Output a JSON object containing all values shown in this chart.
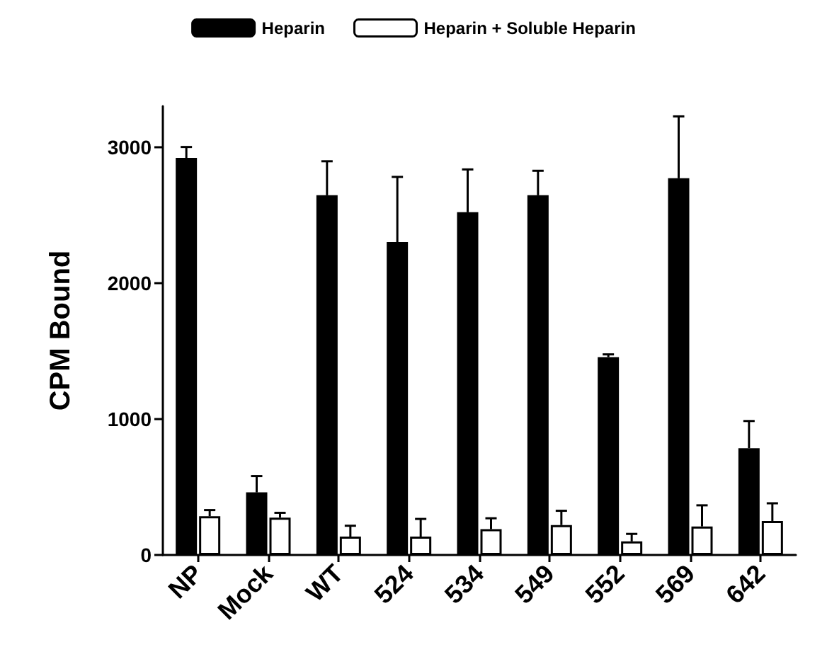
{
  "chart_data": {
    "type": "bar",
    "ylabel": "CPM Bound",
    "categories": [
      "NP",
      "Mock",
      "WT",
      "524",
      "534",
      "549",
      "552",
      "569",
      "642"
    ],
    "series": [
      {
        "name": "Heparin",
        "color": "#000000",
        "values": [
          2920,
          460,
          2645,
          2300,
          2520,
          2645,
          1455,
          2770,
          785
        ],
        "errors": [
          [
            2920,
            3000
          ],
          [
            460,
            580
          ],
          [
            2645,
            2895
          ],
          [
            2300,
            2780
          ],
          [
            2520,
            2835
          ],
          [
            2645,
            2825
          ],
          [
            1455,
            1475
          ],
          [
            2770,
            3225
          ],
          [
            785,
            985
          ]
        ]
      },
      {
        "name": "Heparin + Soluble Heparin",
        "color": "#ffffff",
        "values": [
          285,
          275,
          135,
          135,
          190,
          220,
          100,
          210,
          250
        ],
        "errors": [
          [
            285,
            330
          ],
          [
            275,
            310
          ],
          [
            135,
            215
          ],
          [
            135,
            265
          ],
          [
            190,
            270
          ],
          [
            220,
            325
          ],
          [
            100,
            155
          ],
          [
            210,
            365
          ],
          [
            250,
            380
          ]
        ]
      }
    ],
    "ylim": [
      0,
      3300
    ],
    "yticks": [
      0,
      1000,
      2000,
      3000
    ],
    "grid": false,
    "legend": "top"
  }
}
